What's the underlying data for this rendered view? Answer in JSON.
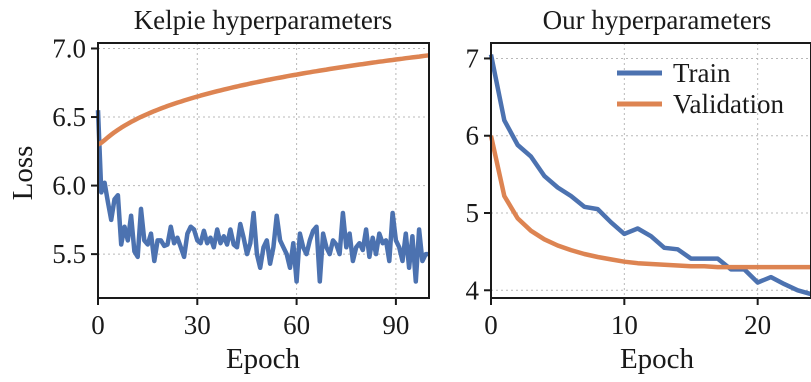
{
  "figure": {
    "colors": {
      "train": "#4c72b0",
      "validation": "#dd8452"
    }
  },
  "chart_data": [
    {
      "type": "line",
      "title": "Kelpie hyperparameters",
      "xlabel": "Epoch",
      "ylabel": "Loss",
      "xlim": [
        0,
        100
      ],
      "ylim": [
        5.18,
        7.04
      ],
      "xticks": [
        0,
        30,
        60,
        90
      ],
      "yticks": [
        5.5,
        6.0,
        6.5,
        7.0
      ],
      "ytick_labels": [
        "5.5",
        "6.0",
        "6.5",
        "7.0"
      ],
      "grid": true,
      "series": [
        {
          "key": "train",
          "values": [
            6.55,
            5.95,
            6.02,
            5.88,
            5.75,
            5.9,
            5.93,
            5.57,
            5.7,
            5.6,
            5.78,
            5.52,
            5.48,
            5.83,
            5.6,
            5.57,
            5.65,
            5.45,
            5.6,
            5.6,
            5.56,
            5.57,
            5.7,
            5.58,
            5.62,
            5.55,
            5.48,
            5.65,
            5.7,
            5.68,
            5.6,
            5.58,
            5.67,
            5.58,
            5.62,
            5.55,
            5.68,
            5.58,
            5.63,
            5.57,
            5.68,
            5.57,
            5.55,
            5.72,
            5.62,
            5.5,
            5.58,
            5.8,
            5.5,
            5.4,
            5.55,
            5.6,
            5.43,
            5.55,
            5.78,
            5.6,
            5.55,
            5.5,
            5.4,
            5.58,
            5.3,
            5.65,
            5.55,
            5.5,
            5.6,
            5.67,
            5.7,
            5.3,
            5.65,
            5.55,
            5.5,
            5.6,
            5.57,
            5.5,
            5.8,
            5.55,
            5.65,
            5.45,
            5.55,
            5.58,
            5.53,
            5.68,
            5.48,
            5.62,
            5.5,
            5.65,
            5.58,
            5.6,
            5.45,
            5.8,
            5.6,
            5.55,
            5.45,
            5.65,
            5.4,
            5.63,
            5.3,
            5.68,
            5.45,
            5.5,
            5.5
          ]
        },
        {
          "key": "validation",
          "fn": "log_growth",
          "start": 6.3,
          "end": 6.95
        }
      ]
    },
    {
      "type": "line",
      "title": "Our hyperparameters",
      "xlabel": "Epoch",
      "ylabel": "",
      "xlim": [
        0,
        24
      ],
      "ylim": [
        3.9,
        7.2
      ],
      "xticks": [
        0,
        10,
        20
      ],
      "yticks": [
        4,
        5,
        6,
        7
      ],
      "ytick_labels": [
        "4",
        "5",
        "6",
        "7"
      ],
      "grid": true,
      "legend": {
        "position": "top-right",
        "entries": [
          "Train",
          "Validation"
        ]
      },
      "series": [
        {
          "key": "train",
          "name": "Train",
          "x": [
            0,
            1,
            2,
            3,
            4,
            5,
            6,
            7,
            8,
            9,
            10,
            11,
            12,
            13,
            14,
            15,
            16,
            17,
            18,
            19,
            20,
            21,
            22,
            23,
            24
          ],
          "values": [
            7.05,
            6.2,
            5.88,
            5.73,
            5.48,
            5.33,
            5.22,
            5.08,
            5.05,
            4.88,
            4.73,
            4.8,
            4.7,
            4.55,
            4.53,
            4.41,
            4.41,
            4.41,
            4.27,
            4.27,
            4.1,
            4.17,
            4.08,
            4.0,
            3.95
          ]
        },
        {
          "key": "validation",
          "name": "Validation",
          "x": [
            0,
            1,
            2,
            3,
            4,
            5,
            6,
            7,
            8,
            9,
            10,
            11,
            12,
            13,
            14,
            15,
            16,
            17,
            18,
            19,
            20,
            21,
            22,
            23,
            24
          ],
          "values": [
            6.0,
            5.22,
            4.93,
            4.77,
            4.66,
            4.58,
            4.52,
            4.47,
            4.43,
            4.4,
            4.37,
            4.35,
            4.34,
            4.33,
            4.32,
            4.31,
            4.31,
            4.3,
            4.3,
            4.3,
            4.3,
            4.3,
            4.3,
            4.3,
            4.3
          ]
        }
      ]
    }
  ]
}
